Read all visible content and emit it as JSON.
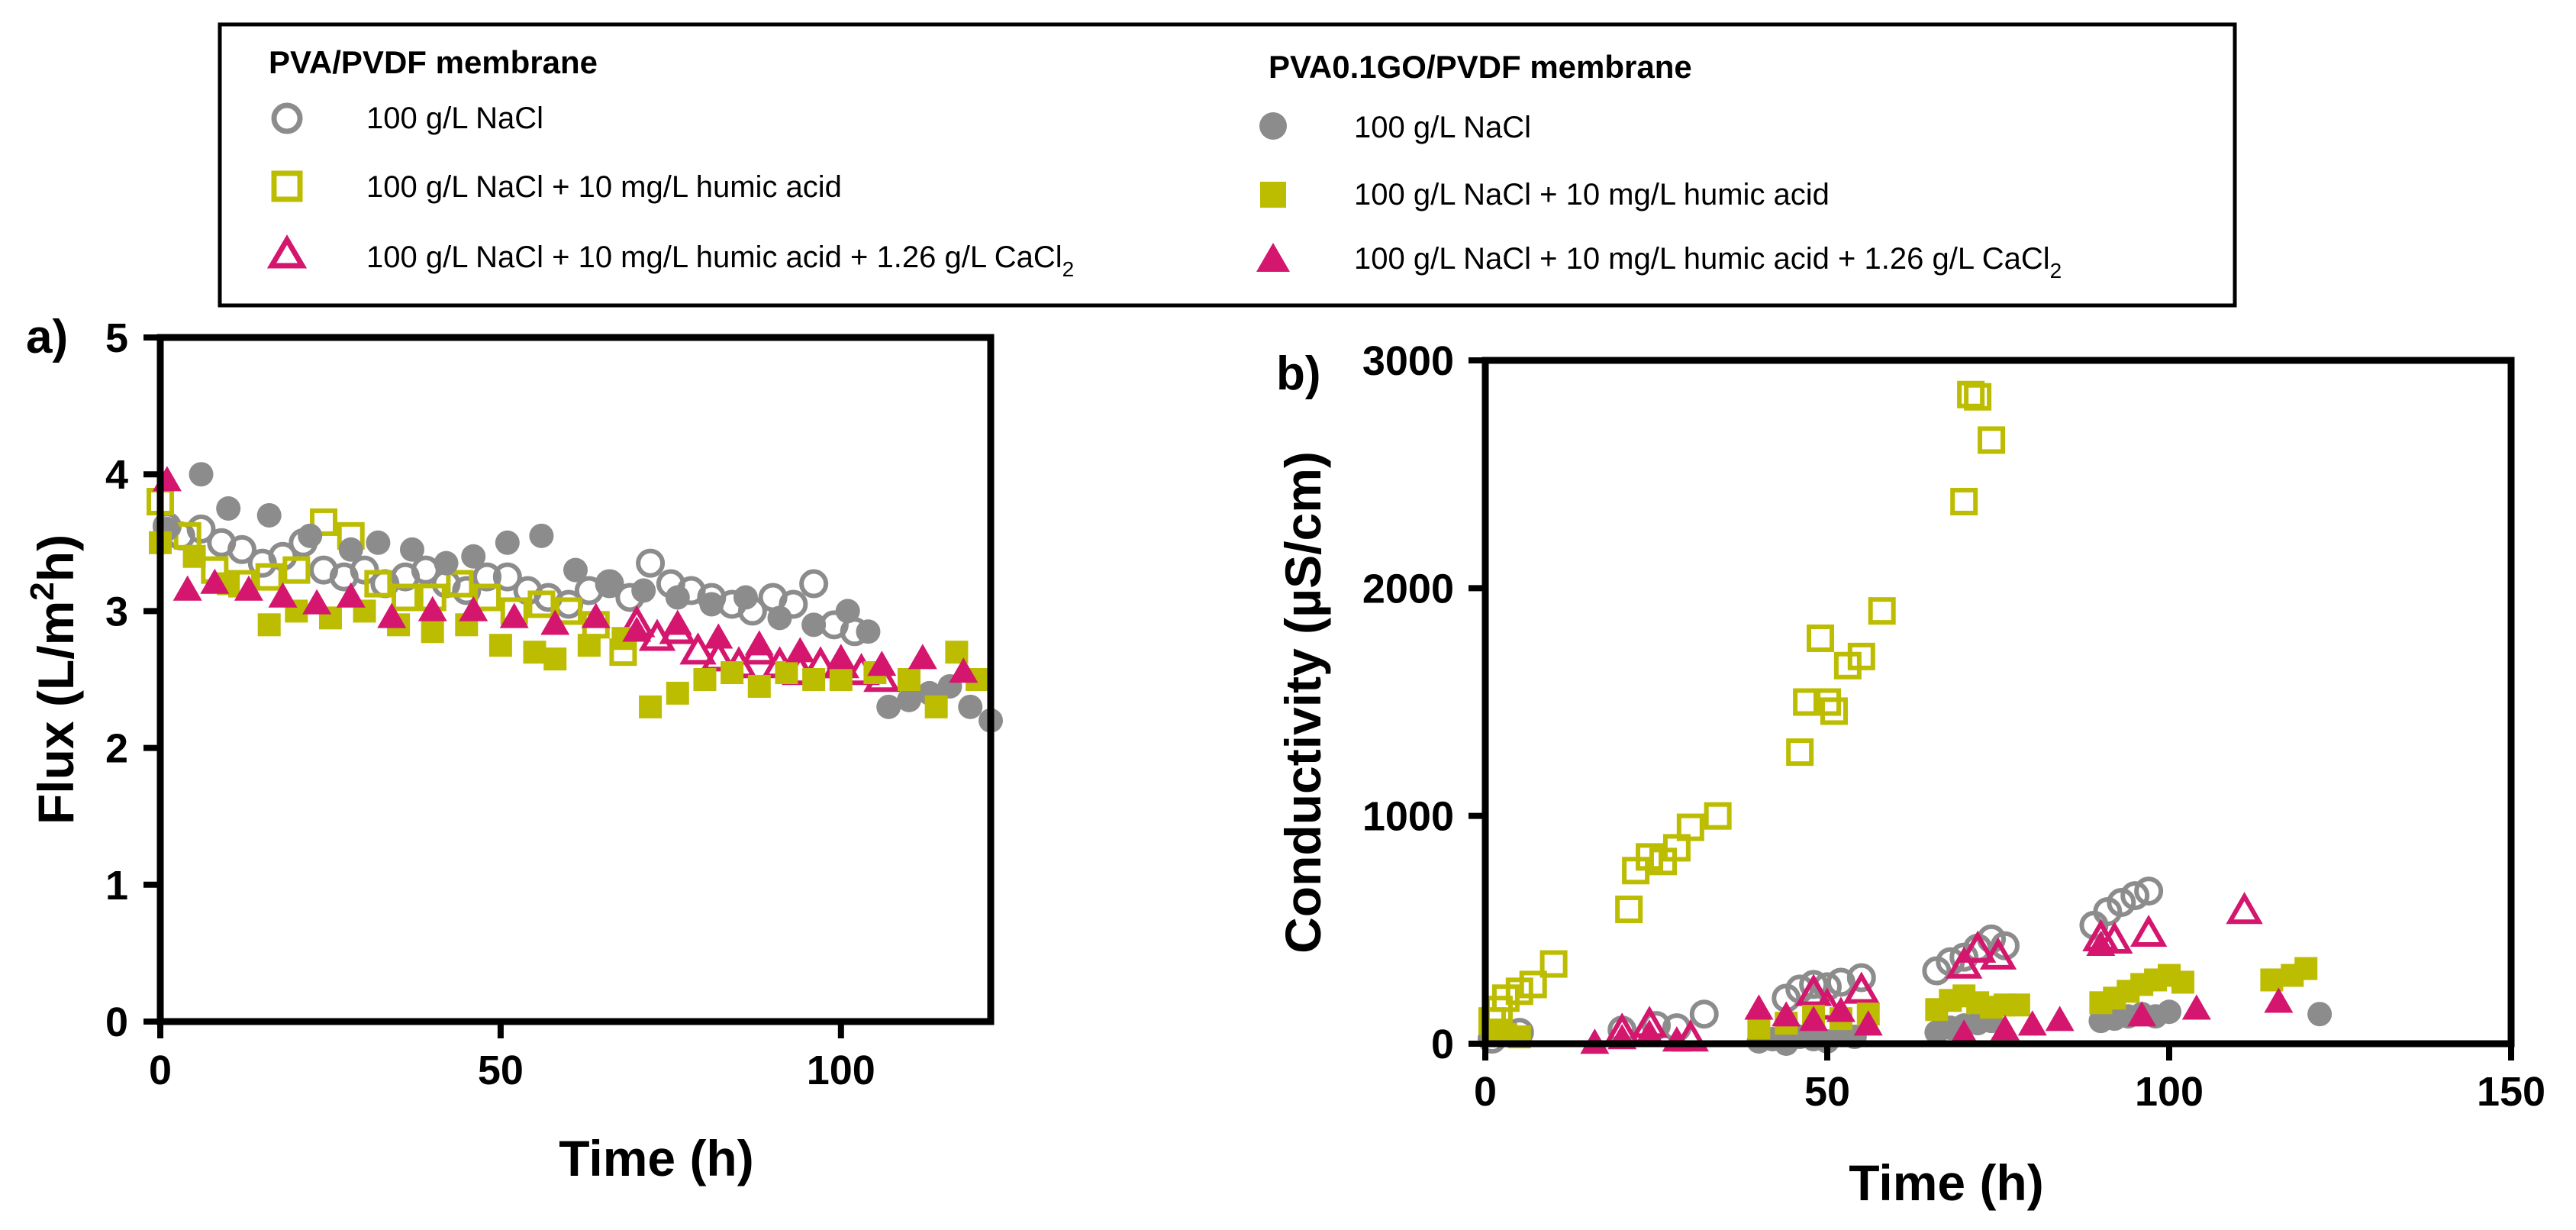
{
  "legend": {
    "group_titles": [
      "PVA/PVDF membrane",
      "PVA0.1GO/PVDF membrane"
    ],
    "entries": [
      {
        "label": "100 g/L NaCl",
        "sub": ""
      },
      {
        "label": "100 g/L NaCl + 10 mg/L humic acid",
        "sub": ""
      },
      {
        "label": "100 g/L NaCl + 10 mg/L humic acid + 1.26 g/L CaCl",
        "sub": "2"
      }
    ]
  },
  "colors": {
    "gray": "#8c8c8c",
    "olive": "#bcbc00",
    "magenta": "#d4166e"
  },
  "chart_data": [
    {
      "type": "scatter",
      "panel_label": "a)",
      "title": "",
      "xlabel": "Time (h)",
      "ylabel_main": "Flux (L/m",
      "ylabel_sup": "2",
      "ylabel_end": "h)",
      "xlim": [
        0,
        122
      ],
      "ylim": [
        0,
        5
      ],
      "xticks": [
        0,
        50,
        100
      ],
      "yticks": [
        0,
        1,
        2,
        3,
        4,
        5
      ],
      "series": [
        {
          "name": "PVA/PVDF 100 g/L NaCl",
          "marker": "circle-open",
          "color": "#8c8c8c",
          "x": [
            1,
            3,
            6,
            9,
            12,
            15,
            18,
            21,
            24,
            27,
            30,
            33,
            36,
            39,
            42,
            45,
            48,
            51,
            54,
            57,
            60,
            63,
            66,
            69,
            72,
            75,
            78,
            81,
            84,
            87,
            90,
            93,
            96,
            99,
            102
          ],
          "y": [
            3.62,
            3.55,
            3.6,
            3.5,
            3.45,
            3.35,
            3.4,
            3.5,
            3.3,
            3.25,
            3.3,
            3.2,
            3.25,
            3.3,
            3.2,
            3.15,
            3.25,
            3.25,
            3.15,
            3.1,
            3.05,
            3.15,
            3.2,
            3.1,
            3.35,
            3.2,
            3.15,
            3.1,
            3.05,
            3.0,
            3.1,
            3.05,
            3.2,
            2.9,
            2.85
          ]
        },
        {
          "name": "PVA/PVDF NaCl + humic acid",
          "marker": "square-open",
          "color": "#bcbc00",
          "x": [
            0,
            4,
            8,
            12,
            16,
            20,
            24,
            28,
            32,
            36,
            40,
            44,
            48,
            52,
            56,
            60,
            64,
            68
          ],
          "y": [
            3.8,
            3.55,
            3.3,
            3.2,
            3.25,
            3.3,
            3.65,
            3.55,
            3.2,
            3.1,
            3.1,
            3.2,
            3.1,
            3.0,
            3.05,
            3.0,
            2.9,
            2.7
          ]
        },
        {
          "name": "PVA/PVDF NaCl + humic acid + CaCl2",
          "marker": "triangle-open",
          "color": "#d4166e",
          "x": [
            70,
            73,
            76,
            79,
            82,
            85,
            88,
            91,
            94,
            97,
            100,
            103,
            106
          ],
          "y": [
            2.9,
            2.8,
            2.85,
            2.7,
            2.65,
            2.6,
            2.7,
            2.6,
            2.55,
            2.6,
            2.6,
            2.55,
            2.5
          ]
        },
        {
          "name": "PVA0.1GO/PVDF 100 g/L NaCl",
          "marker": "circle-filled",
          "color": "#8c8c8c",
          "x": [
            1,
            6,
            10,
            16,
            22,
            28,
            32,
            37,
            42,
            46,
            51,
            56,
            61,
            66,
            71,
            76,
            81,
            86,
            91,
            96,
            101,
            104,
            107,
            110,
            113,
            116,
            119,
            122
          ],
          "y": [
            3.6,
            4.0,
            3.75,
            3.7,
            3.55,
            3.45,
            3.5,
            3.45,
            3.35,
            3.4,
            3.5,
            3.55,
            3.3,
            3.2,
            3.15,
            3.1,
            3.05,
            3.1,
            2.95,
            2.9,
            3.0,
            2.85,
            2.3,
            2.35,
            2.4,
            2.45,
            2.3,
            2.2
          ]
        },
        {
          "name": "PVA0.1GO/PVDF NaCl + humic acid",
          "marker": "square-filled",
          "color": "#bcbc00",
          "x": [
            0,
            5,
            10,
            16,
            20,
            25,
            30,
            35,
            40,
            45,
            50,
            55,
            58,
            63,
            68,
            72,
            76,
            80,
            84,
            88,
            92,
            96,
            100,
            105,
            110,
            114,
            117,
            120
          ],
          "y": [
            3.5,
            3.4,
            3.2,
            2.9,
            3.0,
            2.95,
            3.0,
            2.9,
            2.85,
            2.9,
            2.75,
            2.7,
            2.65,
            2.75,
            2.8,
            2.3,
            2.4,
            2.5,
            2.55,
            2.45,
            2.55,
            2.5,
            2.5,
            2.55,
            2.5,
            2.3,
            2.7,
            2.5
          ]
        },
        {
          "name": "PVA0.1GO/PVDF NaCl + humic acid + CaCl2",
          "marker": "triangle-filled",
          "color": "#d4166e",
          "x": [
            1,
            4,
            8,
            13,
            18,
            23,
            28,
            34,
            40,
            46,
            52,
            58,
            64,
            70,
            76,
            82,
            88,
            94,
            100,
            106,
            112,
            118
          ],
          "y": [
            3.95,
            3.15,
            3.2,
            3.15,
            3.1,
            3.05,
            3.1,
            2.95,
            3.0,
            3.0,
            2.95,
            2.9,
            2.95,
            2.85,
            2.9,
            2.8,
            2.75,
            2.7,
            2.65,
            2.6,
            2.65,
            2.55
          ]
        }
      ]
    },
    {
      "type": "scatter",
      "panel_label": "b)",
      "title": "",
      "xlabel": "Time (h)",
      "ylabel_main": "Conductivity (µS/cm)",
      "ylabel_sup": "",
      "ylabel_end": "",
      "xlim": [
        0,
        150
      ],
      "ylim": [
        0,
        3000
      ],
      "xticks": [
        0,
        50,
        100,
        150
      ],
      "yticks": [
        0,
        1000,
        2000,
        3000
      ],
      "series": [
        {
          "name": "PVA/PVDF 100 g/L NaCl",
          "marker": "circle-open",
          "color": "#8c8c8c",
          "x": [
            1,
            5,
            20,
            25,
            28,
            32,
            44,
            46,
            48,
            50,
            52,
            55,
            66,
            68,
            70,
            72,
            74,
            76,
            89,
            91,
            93,
            95,
            97
          ],
          "y": [
            20,
            50,
            60,
            80,
            70,
            130,
            200,
            240,
            260,
            250,
            270,
            290,
            320,
            360,
            380,
            420,
            460,
            430,
            520,
            580,
            620,
            650,
            670
          ]
        },
        {
          "name": "PVA/PVDF NaCl + humic acid",
          "marker": "square-open",
          "color": "#bcbc00",
          "x": [
            1,
            2,
            3,
            5,
            7,
            10,
            21,
            22,
            24,
            26,
            28,
            30,
            34,
            46,
            47,
            49,
            50,
            51,
            53,
            55,
            58,
            70,
            71,
            72,
            74
          ],
          "y": [
            100,
            150,
            200,
            230,
            260,
            350,
            590,
            760,
            820,
            800,
            860,
            950,
            1000,
            1280,
            1500,
            1780,
            1500,
            1460,
            1660,
            1700,
            1900,
            2380,
            2850,
            2840,
            2650
          ]
        },
        {
          "name": "PVA/PVDF NaCl + humic acid + CaCl2",
          "marker": "triangle-open",
          "color": "#d4166e",
          "x": [
            20,
            24,
            30,
            48,
            50,
            55,
            70,
            72,
            75,
            90,
            92,
            97,
            111
          ],
          "y": [
            50,
            80,
            20,
            220,
            160,
            230,
            340,
            410,
            380,
            460,
            450,
            480,
            580
          ]
        },
        {
          "name": "PVA0.1GO/PVDF 100 g/L NaCl",
          "marker": "circle-filled",
          "color": "#8c8c8c",
          "x": [
            40,
            42,
            44,
            46,
            48,
            50,
            52,
            54,
            66,
            68,
            70,
            72,
            74,
            90,
            92,
            94,
            96,
            98,
            100,
            122
          ],
          "y": [
            10,
            20,
            0,
            30,
            20,
            10,
            40,
            30,
            50,
            70,
            80,
            90,
            100,
            100,
            110,
            120,
            130,
            120,
            140,
            130
          ]
        },
        {
          "name": "PVA0.1GO/PVDF NaCl + humic acid",
          "marker": "square-filled",
          "color": "#bcbc00",
          "x": [
            1,
            3,
            5,
            40,
            44,
            48,
            52,
            56,
            66,
            68,
            70,
            72,
            74,
            76,
            78,
            90,
            92,
            94,
            96,
            98,
            100,
            102,
            115,
            118,
            120
          ],
          "y": [
            60,
            40,
            30,
            70,
            90,
            120,
            110,
            130,
            150,
            190,
            210,
            180,
            160,
            170,
            170,
            180,
            200,
            230,
            260,
            280,
            300,
            270,
            280,
            300,
            330
          ]
        },
        {
          "name": "PVA0.1GO/PVDF NaCl + humic acid + CaCl2",
          "marker": "triangle-filled",
          "color": "#d4166e",
          "x": [
            16,
            20,
            24,
            28,
            40,
            44,
            48,
            52,
            56,
            70,
            76,
            80,
            84,
            90,
            96,
            104,
            116
          ],
          "y": [
            0,
            20,
            40,
            10,
            150,
            120,
            100,
            140,
            80,
            40,
            60,
            80,
            100,
            430,
            120,
            150,
            180
          ]
        }
      ]
    }
  ]
}
